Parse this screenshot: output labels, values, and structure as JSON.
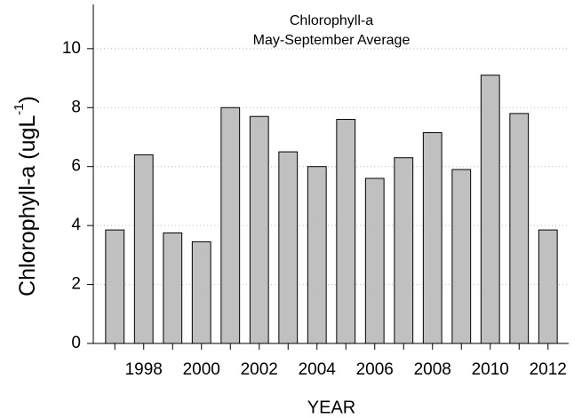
{
  "chart_data": {
    "type": "bar",
    "title": "Chlorophyll-a",
    "subtitle": "May-September Average",
    "x_label": "YEAR",
    "y_label": {
      "text": "Chlorophyll-a (ugL",
      "superscript": "-1",
      "end": ")"
    },
    "categories": [
      null,
      "1998",
      null,
      "2000",
      null,
      "2002",
      null,
      "2004",
      null,
      "2006",
      null,
      "2008",
      null,
      "2010",
      null,
      "2012"
    ],
    "values": [
      3.85,
      6.4,
      3.75,
      3.45,
      8.0,
      7.7,
      6.5,
      6.0,
      7.6,
      5.6,
      6.3,
      7.15,
      5.9,
      9.1,
      7.8,
      3.85
    ],
    "color": "#c0c0c0",
    "ylim": [
      0,
      11.5
    ],
    "yticks": [
      0,
      2,
      4,
      6,
      8,
      10
    ],
    "grid": true
  }
}
